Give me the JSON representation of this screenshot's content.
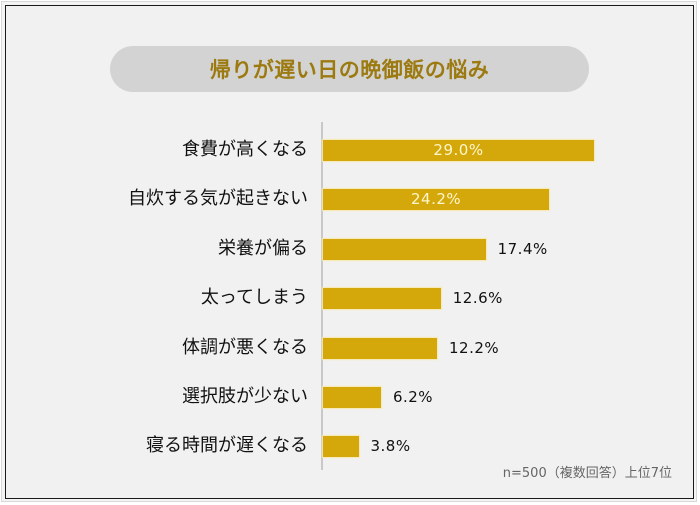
{
  "title": "帰りが遅い日の晩御飯の悩み",
  "note": "n=500（複数回答）上位7位",
  "colors": {
    "bar": "#d4a80a",
    "title_text": "#9c7a10",
    "title_bg": "#d3d3d3",
    "value_inside": "#fff6cc",
    "value_outside": "#111111"
  },
  "chart_data": {
    "type": "bar",
    "orientation": "horizontal",
    "title": "帰りが遅い日の晩御飯の悩み",
    "categories": [
      "食費が高くなる",
      "自炊する気が起きない",
      "栄養が偏る",
      "太ってしまう",
      "体調が悪くなる",
      "選択肢が少ない",
      "寝る時間が遅くなる"
    ],
    "values": [
      29.0,
      24.2,
      17.4,
      12.6,
      12.2,
      6.2,
      3.8
    ],
    "value_labels": [
      "29.0%",
      "24.2%",
      "17.4%",
      "12.6%",
      "12.2%",
      "6.2%",
      "3.8%"
    ],
    "unit": "%",
    "xlabel": "",
    "ylabel": "",
    "grid": false,
    "legend": null,
    "annotation": "n=500（複数回答）上位7位"
  },
  "rows": [
    {
      "label": "食費が高くなる",
      "value": "29.0%",
      "pct": 29.0,
      "inside": true
    },
    {
      "label": "自炊する気が起きない",
      "value": "24.2%",
      "pct": 24.2,
      "inside": true
    },
    {
      "label": "栄養が偏る",
      "value": "17.4%",
      "pct": 17.4,
      "inside": false
    },
    {
      "label": "太ってしまう",
      "value": "12.6%",
      "pct": 12.6,
      "inside": false
    },
    {
      "label": "体調が悪くなる",
      "value": "12.2%",
      "pct": 12.2,
      "inside": false
    },
    {
      "label": "選択肢が少ない",
      "value": "6.2%",
      "pct": 6.2,
      "inside": false
    },
    {
      "label": "寝る時間が遅くなる",
      "value": "3.8%",
      "pct": 3.8,
      "inside": false
    }
  ]
}
